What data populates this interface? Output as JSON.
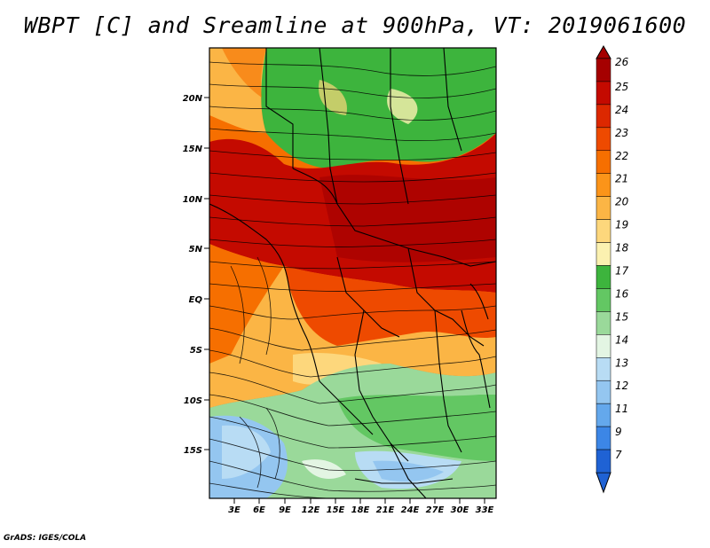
{
  "title": "WBPT [C] and Sreamline at 900hPa, VT: 2019061600",
  "credit": "GrADS: IGES/COLA",
  "map": {
    "lat_labels": [
      "20N",
      "15N",
      "10N",
      "5N",
      "EQ",
      "5S",
      "10S",
      "15S"
    ],
    "lon_labels": [
      "3E",
      "6E",
      "9E",
      "12E",
      "15E",
      "18E",
      "21E",
      "24E",
      "27E",
      "30E",
      "33E"
    ]
  },
  "colorbar": {
    "labels": [
      "26",
      "25",
      "24",
      "23",
      "22",
      "21",
      "20",
      "19",
      "18",
      "17",
      "16",
      "15",
      "14",
      "13",
      "12",
      "11",
      "9",
      "7"
    ],
    "colors": [
      "#a50000",
      "#c40a00",
      "#dc2800",
      "#ee4a00",
      "#f66f00",
      "#fb9419",
      "#fbb545",
      "#fdd77c",
      "#fbf1b0",
      "#3db43d",
      "#63c763",
      "#9ad99a",
      "#e3f5e3",
      "#b8dcf4",
      "#94c6f0",
      "#64a8ec",
      "#3c86e6",
      "#1f62d4"
    ]
  }
}
